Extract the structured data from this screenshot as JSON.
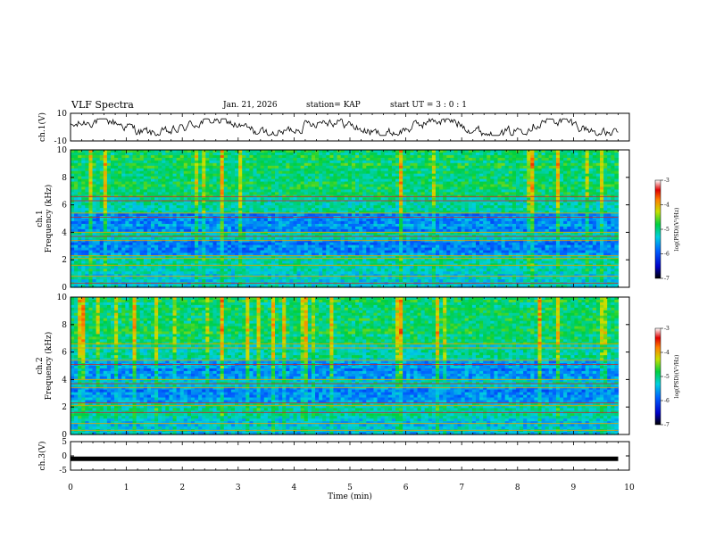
{
  "header": {
    "title": "VLF Spectra",
    "date": "Jan. 21, 2026",
    "station": "station= KAP",
    "start": "start UT = 3 : 0 : 1"
  },
  "chart_data": [
    {
      "type": "line",
      "name": "ch1-voltage",
      "ylabel": "ch.1(V)",
      "ylim": [
        -10,
        10
      ],
      "yticks": [
        10,
        -10
      ],
      "xlim": [
        0,
        10
      ],
      "note": "noisy time series oscillating roughly between -5 and 5 V, trace ends near 9.8 min"
    },
    {
      "type": "heatmap",
      "name": "ch1-spectrogram",
      "ylabel": "ch.1 Frequency (kHz)",
      "ylim": [
        0,
        10
      ],
      "yticks": [
        0,
        2,
        4,
        6,
        8,
        10
      ],
      "xlim": [
        0,
        10
      ],
      "colorbar": {
        "label": "log(PSD)(V²/Hz)",
        "range": [
          -7,
          -3
        ],
        "ticks": [
          -3,
          -4,
          -5,
          -6,
          -7
        ]
      }
    },
    {
      "type": "heatmap",
      "name": "ch2-spectrogram",
      "ylabel": "ch.2 Frequency (kHz)",
      "ylim": [
        0,
        10
      ],
      "yticks": [
        0,
        2,
        4,
        6,
        8,
        10
      ],
      "xlim": [
        0,
        10
      ],
      "colorbar": {
        "label": "log(PSD)(V²/Hz)",
        "range": [
          -7,
          -3
        ],
        "ticks": [
          -3,
          -4,
          -5,
          -6,
          -7
        ]
      }
    },
    {
      "type": "line",
      "name": "ch3-voltage",
      "ylabel": "ch.3(V)",
      "ylim": [
        -5,
        5
      ],
      "yticks": [
        5,
        0,
        -5
      ],
      "xlim": [
        0,
        10
      ],
      "xlabel": "Time (min)",
      "xticks": [
        0,
        1,
        2,
        3,
        4,
        5,
        6,
        7,
        8,
        9,
        10
      ],
      "note": "flat thick trace at approximately -1 V from 0 to 9.8 min"
    }
  ]
}
